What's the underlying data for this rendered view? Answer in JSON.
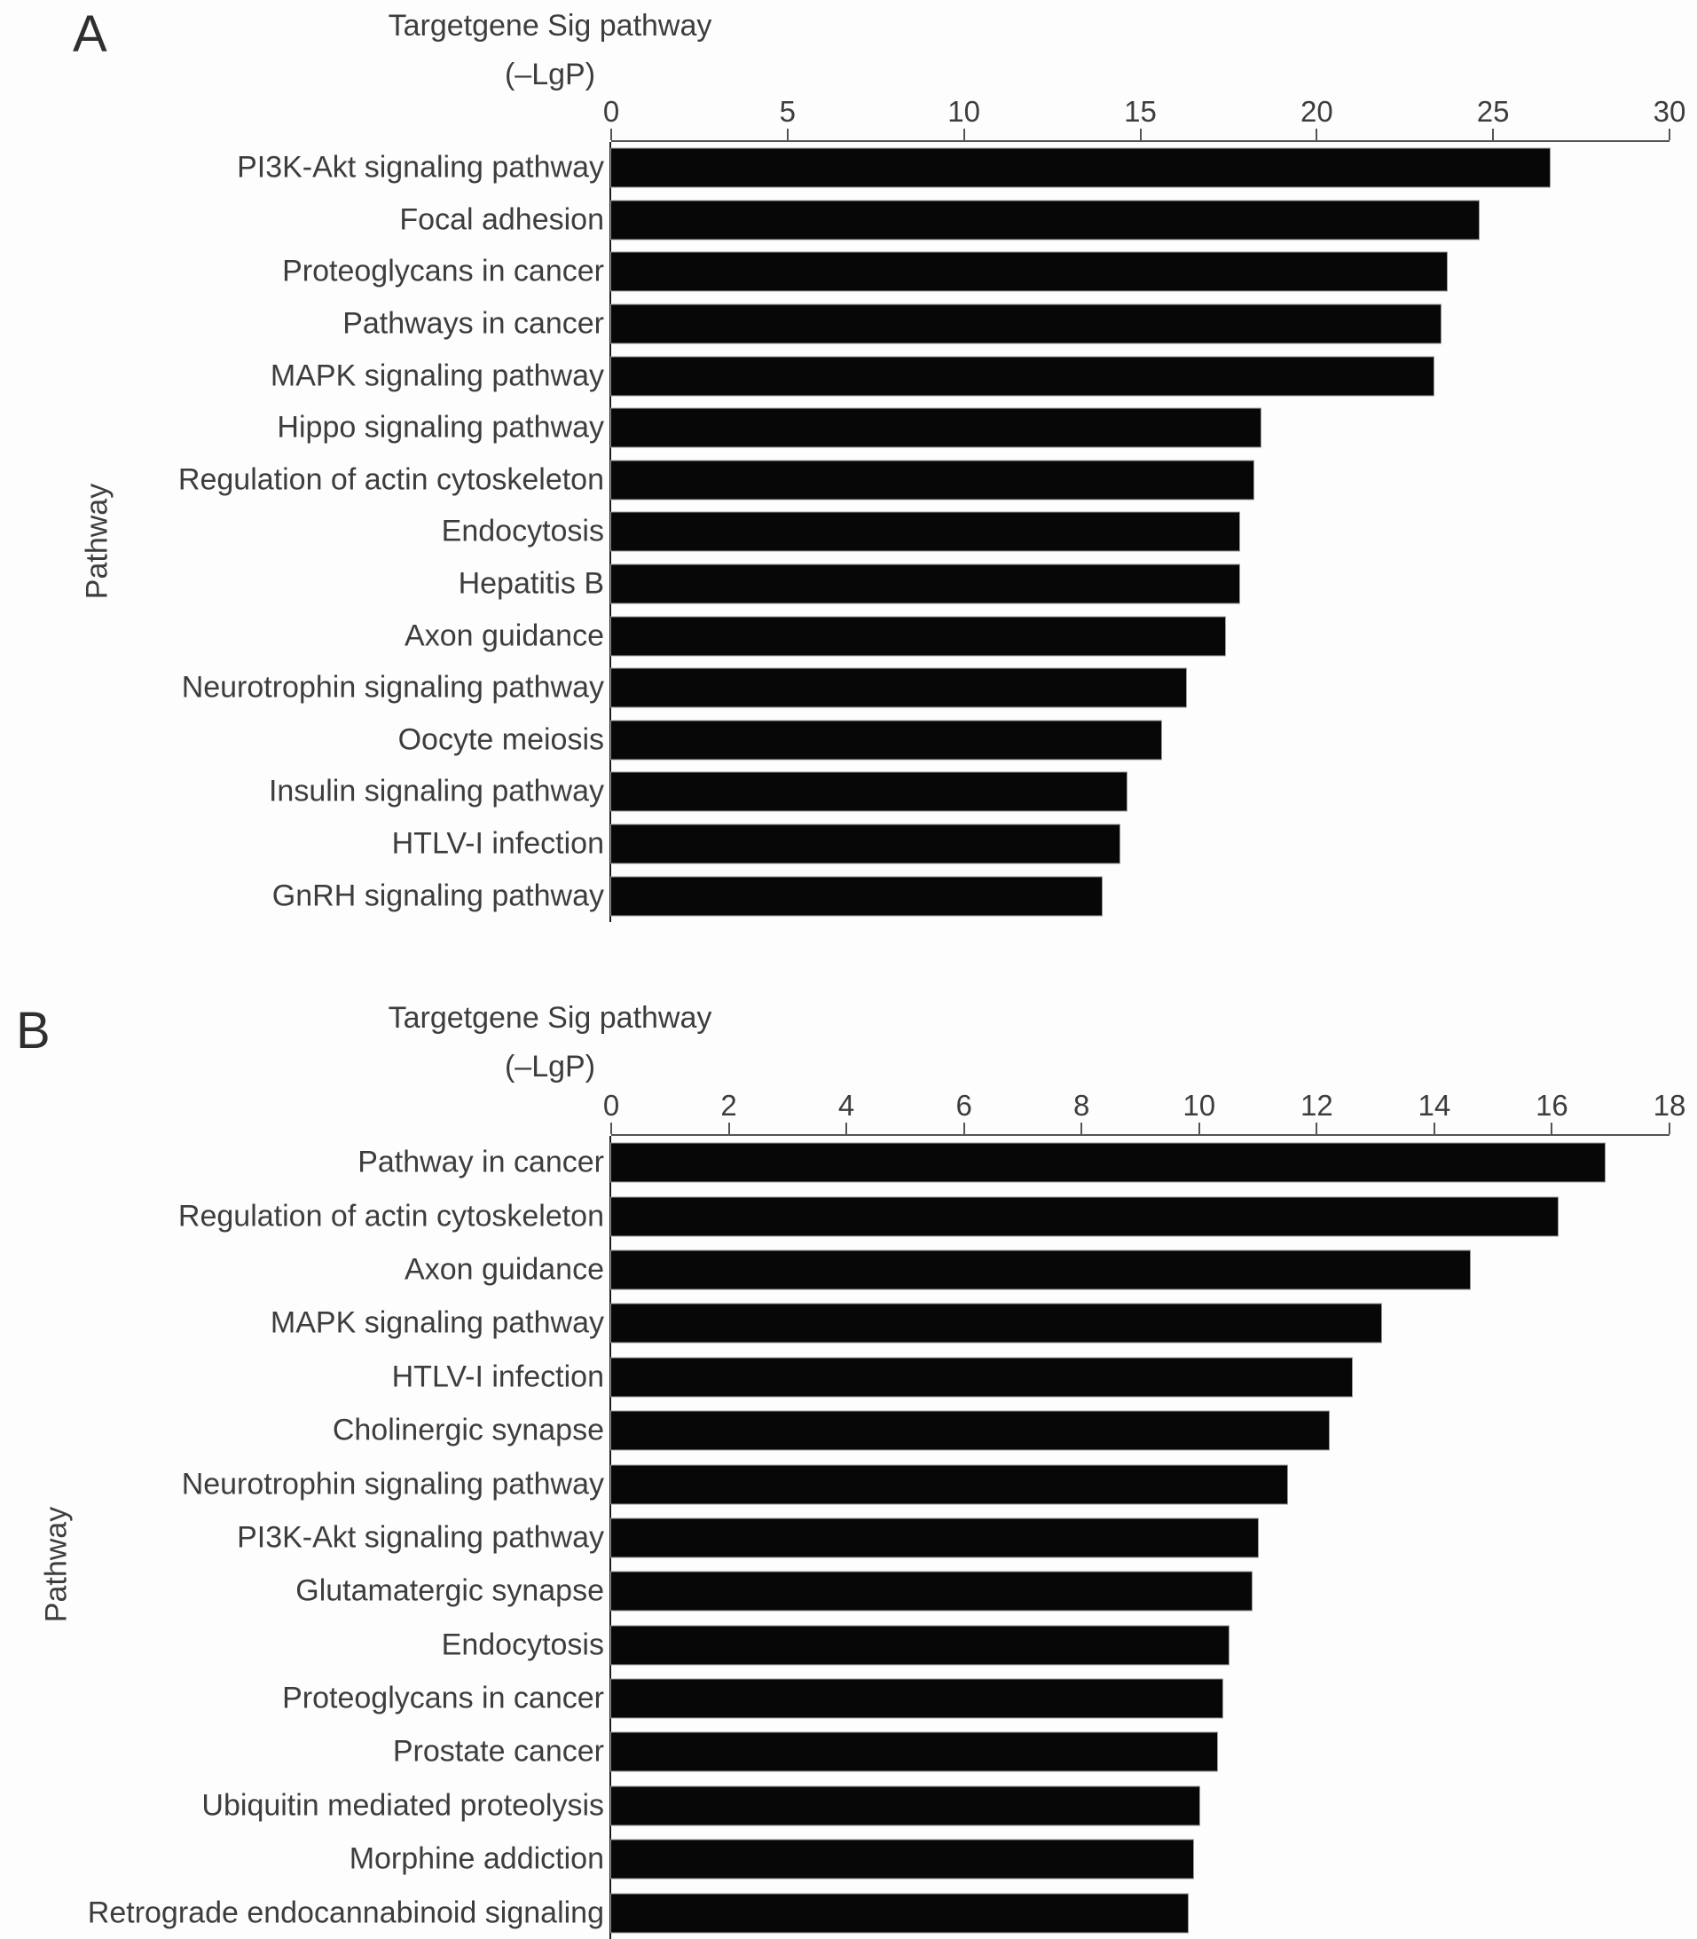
{
  "figure": {
    "background_color": "#fdfdfd",
    "text_color": "#3d3d3d",
    "bar_color": "#070707",
    "axis_color": "#545454"
  },
  "chart_data": [
    {
      "panel": "A",
      "type": "bar",
      "orientation": "horizontal",
      "title": "Targetgene Sig pathway",
      "subtitle": "(–LgP)",
      "ylabel": "Pathway",
      "xlim": [
        0,
        30
      ],
      "xticks": [
        0,
        5,
        10,
        15,
        20,
        25,
        30
      ],
      "grid": false,
      "legend": false,
      "categories": [
        "PI3K-Akt signaling pathway",
        "Focal adhesion",
        "Proteoglycans in cancer",
        "Pathways in cancer",
        "MAPK signaling pathway",
        "Hippo signaling pathway",
        "Regulation of actin cytoskeleton",
        "Endocytosis",
        "Hepatitis B",
        "Axon guidance",
        "Neurotrophin signaling pathway",
        "Oocyte meiosis",
        "Insulin signaling pathway",
        "HTLV-I infection",
        "GnRH signaling pathway"
      ],
      "values": [
        26.6,
        24.6,
        23.7,
        23.5,
        23.3,
        18.4,
        18.2,
        17.8,
        17.8,
        17.4,
        16.3,
        15.6,
        14.6,
        14.4,
        13.9
      ]
    },
    {
      "panel": "B",
      "type": "bar",
      "orientation": "horizontal",
      "title": "Targetgene Sig pathway",
      "subtitle": "(–LgP)",
      "ylabel": "Pathway",
      "xlim": [
        0,
        18
      ],
      "xticks": [
        0,
        2,
        4,
        6,
        8,
        10,
        12,
        14,
        16,
        18
      ],
      "grid": false,
      "legend": false,
      "categories": [
        "Pathway in cancer",
        "Regulation of actin cytoskeleton",
        "Axon guidance",
        "MAPK signaling pathway",
        "HTLV-I infection",
        "Cholinergic synapse",
        "Neurotrophin signaling pathway",
        "PI3K-Akt signaling pathway",
        "Glutamatergic synapse",
        "Endocytosis",
        "Proteoglycans in cancer",
        "Prostate cancer",
        "Ubiquitin mediated proteolysis",
        "Morphine addiction",
        "Retrograde endocannabinoid signaling"
      ],
      "values": [
        16.9,
        16.1,
        14.6,
        13.1,
        12.6,
        12.2,
        11.5,
        11.0,
        10.9,
        10.5,
        10.4,
        10.3,
        10.0,
        9.9,
        9.8
      ]
    }
  ]
}
